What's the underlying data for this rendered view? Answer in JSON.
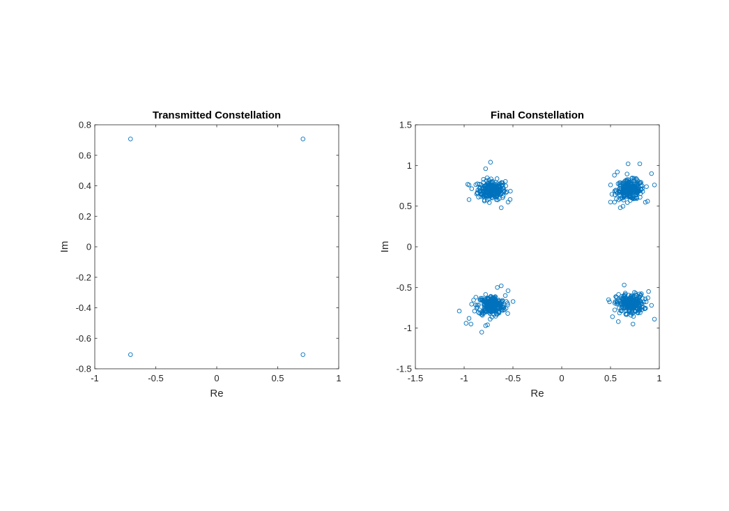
{
  "chart_data": [
    {
      "type": "scatter",
      "title": "Transmitted Constellation",
      "xlabel": "Re",
      "ylabel": "Im",
      "xlim": [
        -1,
        1
      ],
      "ylim": [
        -0.8,
        0.8
      ],
      "xticks": [
        -1,
        -0.5,
        0,
        0.5,
        1
      ],
      "xtick_labels": [
        "-1",
        "-0.5",
        "0",
        "0.5",
        "1"
      ],
      "yticks": [
        -0.8,
        -0.6,
        -0.4,
        -0.2,
        0,
        0.2,
        0.4,
        0.6,
        0.8
      ],
      "ytick_labels": [
        "-0.8",
        "-0.6",
        "-0.4",
        "-0.2",
        "0",
        "0.2",
        "0.4",
        "0.6",
        "0.8"
      ],
      "marker": "circle",
      "color": "#0072BD",
      "points": [
        [
          -0.707,
          0.707
        ],
        [
          0.707,
          0.707
        ],
        [
          -0.707,
          -0.707
        ],
        [
          0.707,
          -0.707
        ]
      ]
    },
    {
      "type": "scatter",
      "title": "Final Constellation",
      "xlabel": "Re",
      "ylabel": "Im",
      "xlim": [
        -1.5,
        1
      ],
      "ylim": [
        -1.5,
        1.5
      ],
      "xticks": [
        -1.5,
        -1,
        -0.5,
        0,
        0.5,
        1
      ],
      "xtick_labels": [
        "-1.5",
        "-1",
        "-0.5",
        "0",
        "0.5",
        "1"
      ],
      "yticks": [
        -1.5,
        -1,
        -0.5,
        0,
        0.5,
        1,
        1.5
      ],
      "ytick_labels": [
        "-1.5",
        "-1",
        "-0.5",
        "0",
        "0.5",
        "1",
        "1.5"
      ],
      "marker": "circle",
      "color": "#0072BD",
      "cluster_centers": [
        [
          -0.72,
          0.7
        ],
        [
          0.7,
          0.7
        ],
        [
          -0.72,
          -0.72
        ],
        [
          0.7,
          -0.7
        ]
      ],
      "cluster_spread": 0.07,
      "points_per_cluster": 250,
      "outlier_points": [
        [
          -0.73,
          1.04
        ],
        [
          -0.78,
          0.96
        ],
        [
          -0.95,
          0.76
        ],
        [
          -0.95,
          0.58
        ],
        [
          -0.55,
          0.55
        ],
        [
          -0.62,
          0.48
        ],
        [
          0.68,
          1.02
        ],
        [
          0.8,
          1.02
        ],
        [
          0.57,
          0.92
        ],
        [
          0.54,
          0.88
        ],
        [
          0.92,
          0.9
        ],
        [
          0.95,
          0.76
        ],
        [
          0.88,
          0.56
        ],
        [
          0.5,
          0.55
        ],
        [
          0.6,
          0.48
        ],
        [
          -1.05,
          -0.79
        ],
        [
          -0.95,
          -0.88
        ],
        [
          -0.93,
          -0.95
        ],
        [
          -0.98,
          -0.94
        ],
        [
          -0.82,
          -1.05
        ],
        [
          -0.78,
          -0.97
        ],
        [
          -0.55,
          -0.54
        ],
        [
          -0.62,
          -0.48
        ],
        [
          -0.66,
          -0.5
        ],
        [
          -0.88,
          -0.62
        ],
        [
          0.64,
          -0.47
        ],
        [
          0.95,
          -0.89
        ],
        [
          0.73,
          -0.95
        ],
        [
          0.58,
          -0.92
        ],
        [
          0.52,
          -0.86
        ],
        [
          0.48,
          -0.65
        ],
        [
          0.89,
          -0.55
        ],
        [
          0.92,
          -0.72
        ]
      ]
    }
  ]
}
